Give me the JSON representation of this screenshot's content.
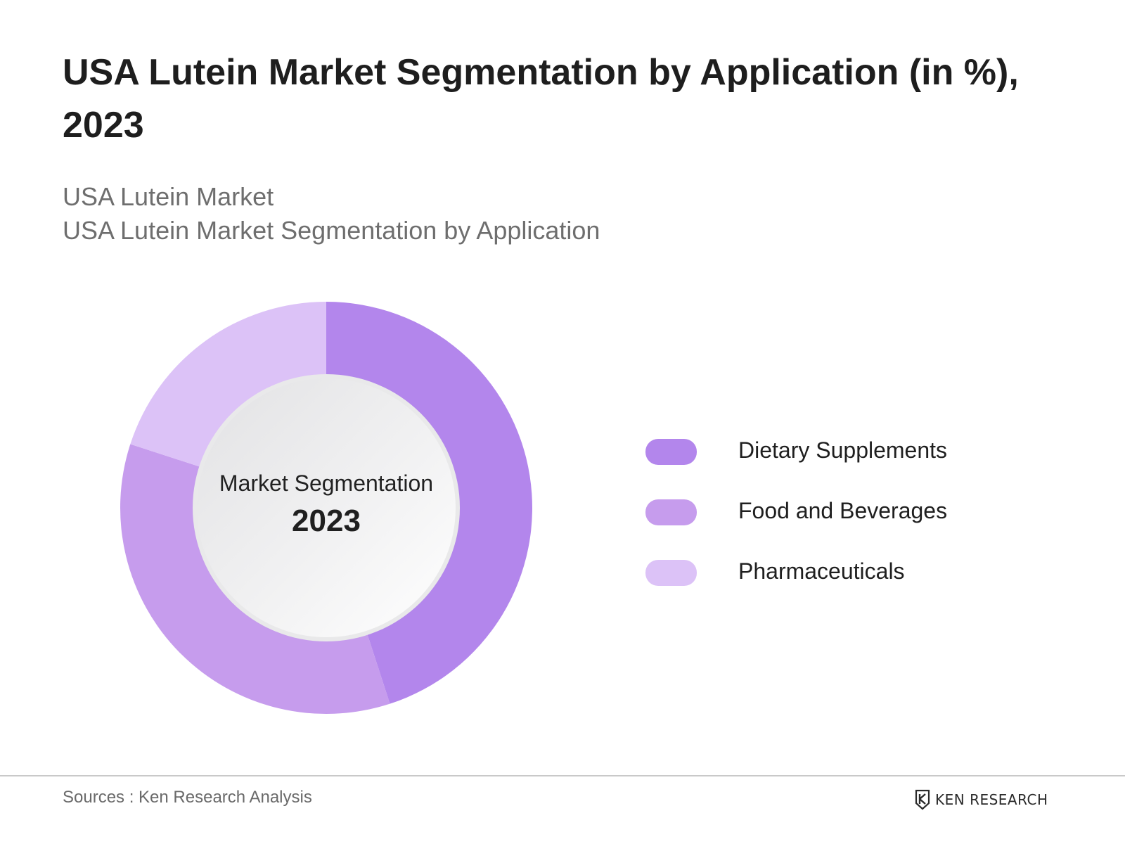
{
  "header": {
    "title": "USA Lutein Market Segmentation by Application (in %), 2023",
    "subtitle_line1": "USA Lutein Market",
    "subtitle_line2": "USA Lutein Market Segmentation by Application"
  },
  "chart_data": {
    "type": "pie",
    "categories": [
      "Dietary Supplements",
      "Food and Beverages",
      "Pharmaceuticals"
    ],
    "values": [
      45,
      35,
      20
    ],
    "colors": [
      "#b386ec",
      "#c69ced",
      "#dcc2f7"
    ],
    "center_label": {
      "line1": "Market Segmentation",
      "line2": "2023"
    },
    "legend_position": "right"
  },
  "footer": {
    "sources": "Sources : Ken Research Analysis",
    "brand": "KEN RESEARCH"
  }
}
